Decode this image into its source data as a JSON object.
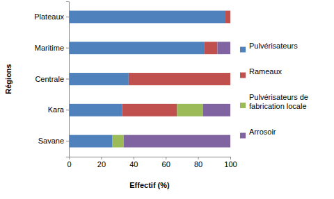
{
  "chart_data": {
    "type": "bar",
    "orientation": "horizontal",
    "stacked": true,
    "xlabel": "Effectif (%)",
    "ylabel": "Régions",
    "categories": [
      "Plateaux",
      "Maritime",
      "Centrale",
      "Kara",
      "Savane"
    ],
    "series": [
      {
        "name": "Pulvérisateurs",
        "color": "#4f81bd",
        "values": [
          97,
          84,
          37,
          33,
          27
        ]
      },
      {
        "name": "Rameaux",
        "color": "#c0504d",
        "values": [
          3,
          8,
          63,
          34,
          0
        ]
      },
      {
        "name": "Pulvérisateurs de fabrication locale",
        "color": "#9bbb59",
        "values": [
          0,
          0,
          0,
          16,
          7
        ]
      },
      {
        "name": "Arrosoir",
        "color": "#8064a2",
        "values": [
          0,
          8,
          0,
          17,
          66
        ]
      }
    ],
    "xlim": [
      0,
      100
    ],
    "xticks": [
      0,
      20,
      40,
      60,
      80,
      100
    ],
    "legend": "right",
    "grid": false
  }
}
